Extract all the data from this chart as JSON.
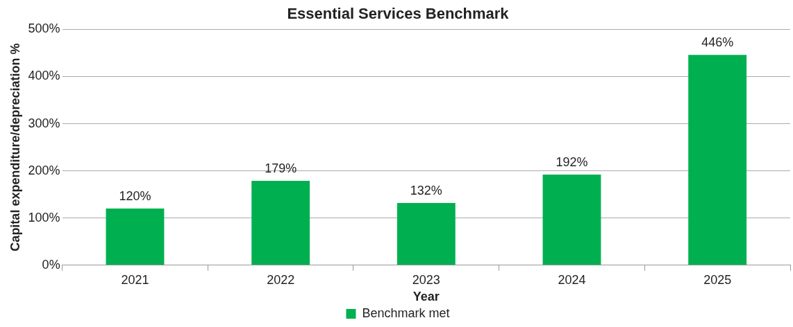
{
  "chart_data": {
    "type": "bar",
    "title": "Essential Services Benchmark",
    "xlabel": "Year",
    "ylabel": "Capital expenditure/depreciation %",
    "categories": [
      "2021",
      "2022",
      "2023",
      "2024",
      "2025"
    ],
    "series": [
      {
        "name": "Benchmark met",
        "color": "#00b050",
        "values": [
          120,
          179,
          132,
          192,
          446
        ],
        "value_labels": [
          "120%",
          "179%",
          "132%",
          "192%",
          "446%"
        ]
      }
    ],
    "ylim": [
      0,
      500
    ],
    "yticks": [
      {
        "value": 0,
        "label": "0%"
      },
      {
        "value": 100,
        "label": "100%"
      },
      {
        "value": 200,
        "label": "200%"
      },
      {
        "value": 300,
        "label": "300%"
      },
      {
        "value": 400,
        "label": "400%"
      },
      {
        "value": 500,
        "label": "500%"
      }
    ],
    "grid": "y",
    "legend": "bottom"
  }
}
